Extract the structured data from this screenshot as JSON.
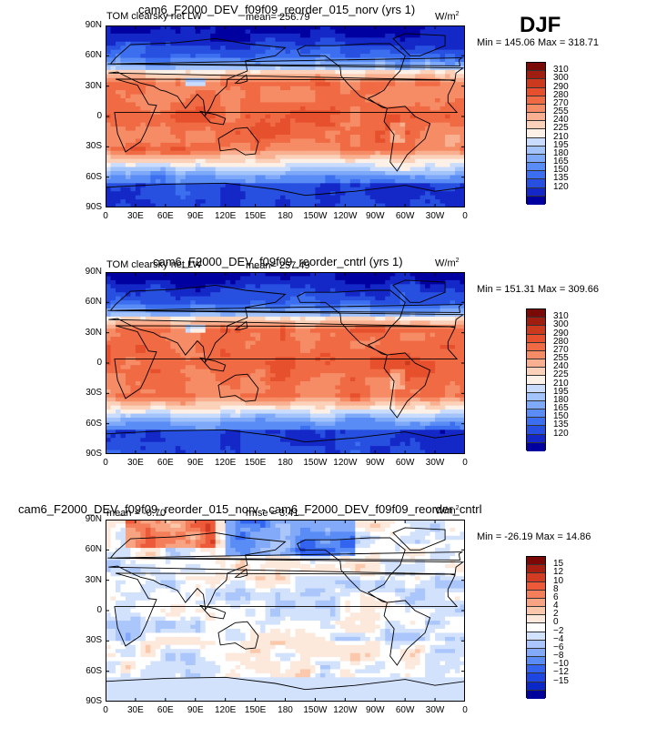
{
  "season": "DJF",
  "colors": {
    "abs": [
      "#0000a0",
      "#1428c8",
      "#2850e0",
      "#3c6ef0",
      "#5a8cf5",
      "#7ea8f8",
      "#a3c3fb",
      "#cadcfd",
      "#fdf0e6",
      "#fbd2b9",
      "#f8b090",
      "#f58c66",
      "#f06a44",
      "#e6502d",
      "#cc3a1e",
      "#a01e10",
      "#7a0a05"
    ],
    "diff": [
      "#00009a",
      "#0a28c8",
      "#1e46e0",
      "#3264f0",
      "#5a8cf5",
      "#82aaf8",
      "#aac6fb",
      "#d2e2fd",
      "#ffffff",
      "#fde8dc",
      "#fbc8ac",
      "#f8a482",
      "#f47e5a",
      "#ec5a3a",
      "#d23c22",
      "#a81e10",
      "#7c0806"
    ]
  },
  "axes": {
    "y_ticks": [
      "90N",
      "60N",
      "30N",
      "0",
      "30S",
      "60S",
      "90S"
    ],
    "x_ticks": [
      "0",
      "30E",
      "60E",
      "90E",
      "120E",
      "150E",
      "180",
      "150W",
      "120W",
      "90W",
      "60W",
      "30W",
      "0"
    ]
  },
  "chart_data": [
    {
      "type": "heatmap",
      "title": "cam6_F2000_DEV_f09f09_reorder_015_norv (yrs 1)",
      "variable": "TOM clearsky net LW",
      "units_base": "W/m",
      "units_exp": "2",
      "mean_label": "mean=",
      "mean": "256.79",
      "min_label": "Min =",
      "min": "145.06",
      "max_label": "Max =",
      "max": "318.71",
      "levels": [
        "310",
        "300",
        "290",
        "280",
        "270",
        "255",
        "240",
        "225",
        "210",
        "195",
        "180",
        "165",
        "150",
        "135",
        "120"
      ],
      "xlim": [
        0,
        360
      ],
      "ylim": [
        -90,
        90
      ]
    },
    {
      "type": "heatmap",
      "title": "cam6_F2000_DEV_f09f09_reorder_cntrl (yrs 1)",
      "variable": "TOM clearsky net LW",
      "units_base": "W/m",
      "units_exp": "2",
      "mean_label": "mean=",
      "mean": "257.49",
      "min_label": "Min =",
      "min": "151.31",
      "max_label": "Max =",
      "max": "309.66",
      "levels": [
        "310",
        "300",
        "290",
        "280",
        "270",
        "255",
        "240",
        "225",
        "210",
        "195",
        "180",
        "165",
        "150",
        "135",
        "120"
      ],
      "xlim": [
        0,
        360
      ],
      "ylim": [
        -90,
        90
      ]
    },
    {
      "type": "heatmap",
      "title": "cam6_F2000_DEV_f09f09_reorder_015_norv - cam6_F2000_DEV_f09f09_reorder_cntrl",
      "units_base": "W/m",
      "units_exp": "2",
      "mean_label": "mean =",
      "mean": "-0.70",
      "rmse_label": "rmse =",
      "rmse": "3.41",
      "min_label": "Min =",
      "min": "-26.19",
      "max_label": "Max =",
      "max": "14.86",
      "levels": [
        "15",
        "12",
        "10",
        "8",
        "6",
        "4",
        "2",
        "0",
        "−2",
        "−4",
        "−6",
        "−8",
        "−10",
        "−12",
        "−15"
      ],
      "xlim": [
        0,
        360
      ],
      "ylim": [
        -90,
        90
      ]
    }
  ]
}
